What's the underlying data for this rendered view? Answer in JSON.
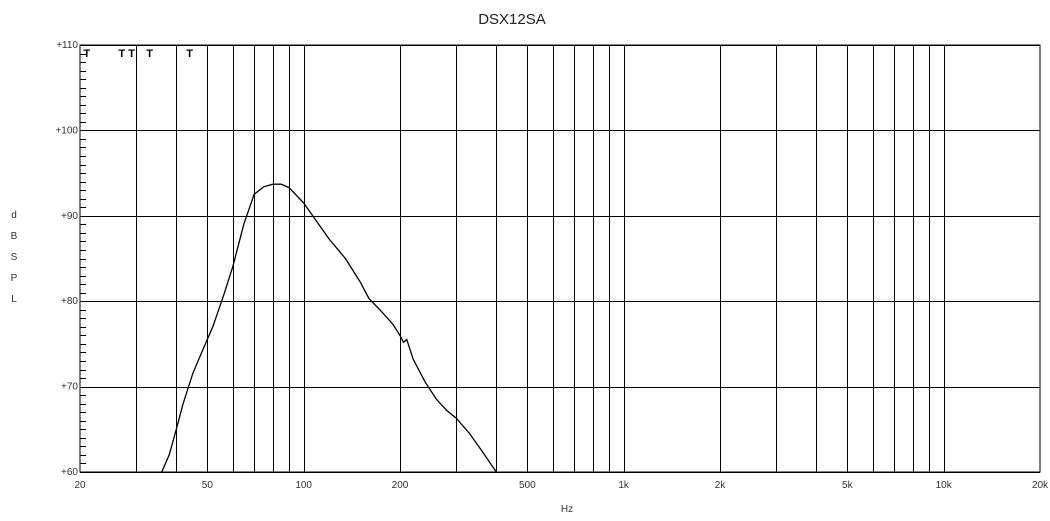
{
  "chart_data": {
    "type": "line",
    "title": "DSX12SA",
    "xlabel": "Hz",
    "ylabel": "d B S P L",
    "x_scale": "log",
    "xlim": [
      20,
      20000
    ],
    "ylim": [
      60,
      110
    ],
    "grid": true,
    "x_ticks": [
      {
        "value": 20,
        "label": "20"
      },
      {
        "value": 50,
        "label": "50"
      },
      {
        "value": 100,
        "label": "100"
      },
      {
        "value": 200,
        "label": "200"
      },
      {
        "value": 500,
        "label": "500"
      },
      {
        "value": 1000,
        "label": "1k"
      },
      {
        "value": 2000,
        "label": "2k"
      },
      {
        "value": 5000,
        "label": "5k"
      },
      {
        "value": 10000,
        "label": "10k"
      },
      {
        "value": 20000,
        "label": "20k"
      }
    ],
    "y_ticks": [
      {
        "value": 60,
        "label": "+60"
      },
      {
        "value": 70,
        "label": "+70"
      },
      {
        "value": 80,
        "label": "+80"
      },
      {
        "value": 90,
        "label": "+90"
      },
      {
        "value": 100,
        "label": "+100"
      },
      {
        "value": 110,
        "label": "+110"
      }
    ],
    "markers": [
      {
        "x": 21,
        "label": "T"
      },
      {
        "x": 27,
        "label": "T"
      },
      {
        "x": 29,
        "label": "T"
      },
      {
        "x": 33,
        "label": "T"
      },
      {
        "x": 44,
        "label": "T"
      }
    ],
    "series": [
      {
        "x": [
          36,
          38,
          40,
          42,
          45,
          48,
          52,
          56,
          60,
          65,
          70,
          75,
          80,
          85,
          90,
          100,
          110,
          120,
          135,
          150,
          160,
          175,
          190,
          200,
          205,
          210,
          220,
          240,
          260,
          280,
          300,
          330,
          360,
          400
        ],
        "y": [
          60,
          62,
          65,
          68,
          71.5,
          74,
          77,
          80.5,
          84,
          89,
          92.5,
          93.4,
          93.7,
          93.7,
          93.3,
          91.5,
          89.3,
          87.3,
          85,
          82.3,
          80.3,
          78.8,
          77.3,
          76,
          75.2,
          75.5,
          73.2,
          70.5,
          68.5,
          67.2,
          66.3,
          64.5,
          62.5,
          60
        ]
      }
    ]
  }
}
